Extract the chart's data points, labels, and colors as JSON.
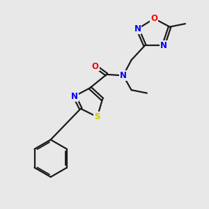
{
  "background_color": "#e8e8e8",
  "bond_color": "#1a1a1a",
  "atom_colors": {
    "N": "#0000ff",
    "O": "#ff0000",
    "S": "#cccc00",
    "C": "#1a1a1a"
  },
  "figsize": [
    3.0,
    3.0
  ],
  "dpi": 100,
  "xlim": [
    0,
    10
  ],
  "ylim": [
    0,
    10
  ]
}
